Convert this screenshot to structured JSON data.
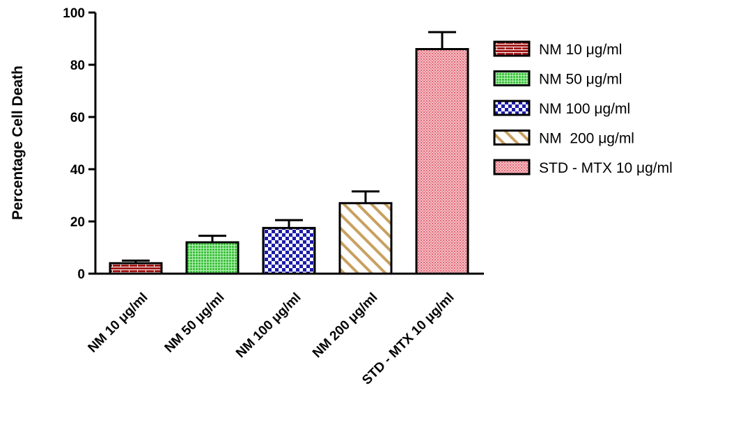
{
  "chart_data": {
    "type": "bar",
    "title": "",
    "xlabel": "",
    "ylabel": "Percentage Cell Death",
    "ylim": [
      0,
      100
    ],
    "yticks": [
      0,
      20,
      40,
      60,
      80,
      100
    ],
    "categories": [
      "NM 10 μg/ml",
      "NM 50 μg/ml",
      "NM 100 μg/ml",
      "NM  200 μg/ml",
      "STD - MTX 10 μg/ml"
    ],
    "values": [
      4,
      12,
      17.5,
      27,
      86
    ],
    "error_upper": [
      1,
      2.5,
      3,
      4.5,
      6.5
    ],
    "colors": [
      "#a01818",
      "#3ec23e",
      "#1c1ca8",
      "#c8a060",
      "#e06a78"
    ],
    "patterns": [
      "brick",
      "grid",
      "checker",
      "diagonal",
      "dots"
    ],
    "legend": {
      "placement": "right",
      "entries": [
        "NM 10 μg/ml",
        "NM 50 μg/ml",
        "NM 100 μg/ml",
        "NM  200 μg/ml",
        "STD - MTX 10 μg/ml"
      ]
    },
    "grid": false
  }
}
